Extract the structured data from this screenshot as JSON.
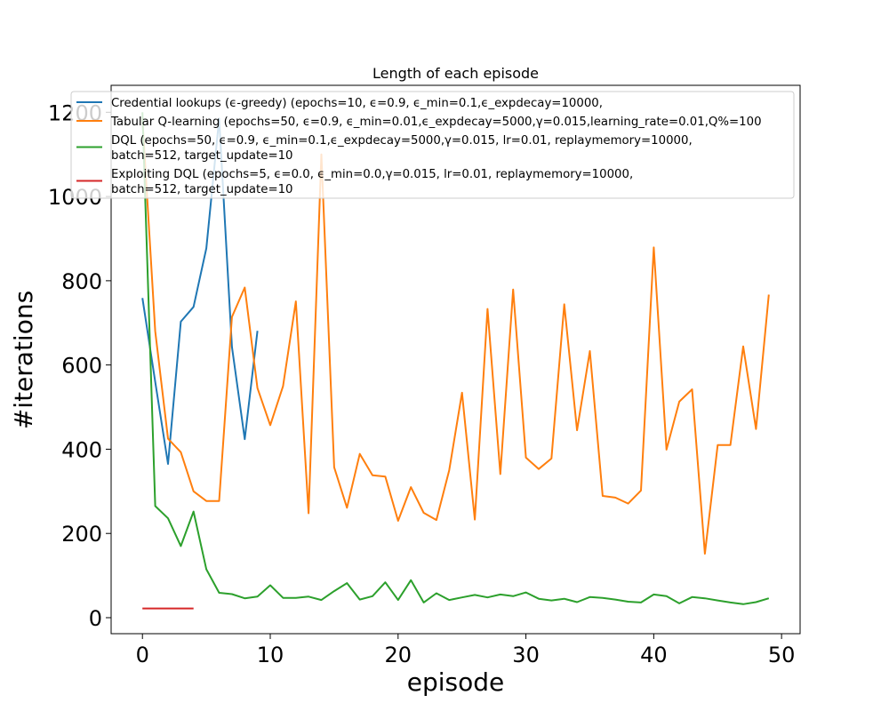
{
  "chart_data": {
    "type": "line",
    "title": "Length of each episode",
    "xlabel": "episode",
    "ylabel": "#iterations",
    "xlim": [
      -2.45,
      51.45
    ],
    "ylim": [
      -38,
      1264
    ],
    "xticks": [
      0,
      10,
      20,
      30,
      40,
      50
    ],
    "yticks": [
      0,
      200,
      400,
      600,
      800,
      1000,
      1200
    ],
    "grid": false,
    "legend_position": "top",
    "series": [
      {
        "name": "Credential lookups (ϵ-greedy) (epochs=10, ϵ=0.9, ϵ_min=0.1,ϵ_expdecay=10000,",
        "color": "#1f77b4",
        "x": [
          0,
          1,
          2,
          3,
          4,
          5,
          6,
          7,
          8,
          9
        ],
        "values": [
          759,
          560,
          365,
          703,
          738,
          877,
          1185,
          643,
          424,
          681
        ]
      },
      {
        "name": "Tabular Q-learning (epochs=50, ϵ=0.9, ϵ_min=0.01,ϵ_expdecay=5000,γ=0.015,learning_rate=0.01,Q%=100",
        "color": "#ff7f0e",
        "x": [
          0,
          1,
          2,
          3,
          4,
          5,
          6,
          7,
          8,
          9,
          10,
          11,
          12,
          13,
          14,
          15,
          16,
          17,
          18,
          19,
          20,
          21,
          22,
          23,
          24,
          25,
          26,
          27,
          28,
          29,
          30,
          31,
          32,
          33,
          34,
          35,
          36,
          37,
          38,
          39,
          40,
          41,
          42,
          43,
          44,
          45,
          46,
          47,
          48,
          49
        ],
        "values": [
          1185,
          680,
          425,
          393,
          300,
          277,
          277,
          714,
          784,
          545,
          457,
          550,
          751,
          248,
          1100,
          357,
          261,
          389,
          338,
          335,
          230,
          310,
          249,
          232,
          350,
          534,
          233,
          733,
          341,
          779,
          380,
          353,
          378,
          744,
          445,
          633,
          289,
          285,
          271,
          302,
          879,
          399,
          513,
          542,
          152,
          410,
          410,
          644,
          448,
          767
        ]
      },
      {
        "name": "DQL (epochs=50, ϵ=0.9, ϵ_min=0.1,ϵ_expdecay=5000,γ=0.015, lr=0.01, replaymemory=10000,\nbatch=512, target_update=10",
        "color": "#2ca02c",
        "x": [
          0,
          1,
          2,
          3,
          4,
          5,
          6,
          7,
          8,
          9,
          10,
          11,
          12,
          13,
          14,
          15,
          16,
          17,
          18,
          19,
          20,
          21,
          22,
          23,
          24,
          25,
          26,
          27,
          28,
          29,
          30,
          31,
          32,
          33,
          34,
          35,
          36,
          37,
          38,
          39,
          40,
          41,
          42,
          43,
          44,
          45,
          46,
          47,
          48,
          49
        ],
        "values": [
          1200,
          265,
          236,
          170,
          252,
          115,
          59,
          56,
          46,
          50,
          77,
          47,
          47,
          50,
          42,
          63,
          82,
          43,
          51,
          84,
          42,
          89,
          36,
          58,
          42,
          48,
          54,
          48,
          55,
          51,
          60,
          45,
          41,
          45,
          37,
          49,
          47,
          43,
          38,
          36,
          55,
          51,
          34,
          49,
          46,
          41,
          36,
          32,
          37,
          46
        ]
      },
      {
        "name": "Exploiting DQL (epochs=5, ϵ=0.0, ϵ_min=0.0,γ=0.015, lr=0.01, replaymemory=10000,\nbatch=512, target_update=10",
        "color": "#d62728",
        "x": [
          0,
          1,
          2,
          3,
          4
        ],
        "values": [
          22,
          22,
          22,
          22,
          22
        ]
      }
    ]
  }
}
